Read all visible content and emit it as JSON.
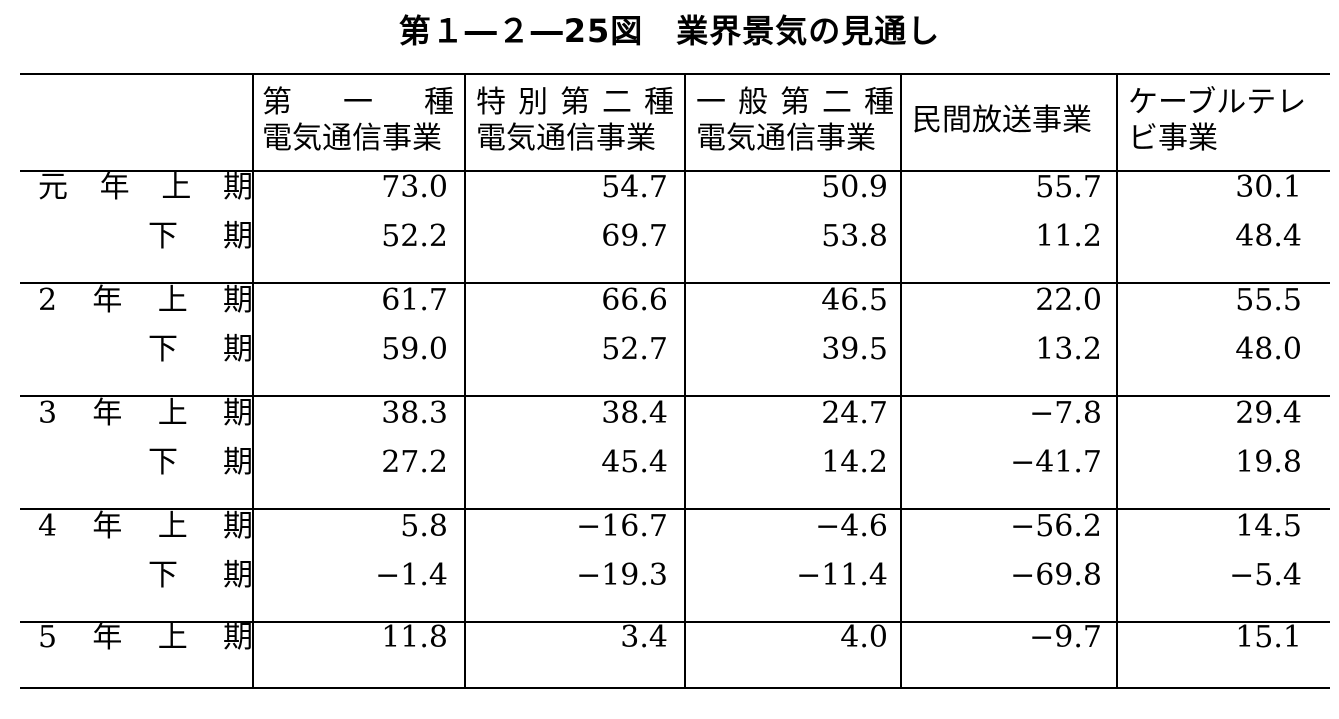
{
  "title": "第１―２―25図　業界景気の見通し",
  "columns": [
    {
      "line1": [
        "第",
        "一",
        "種"
      ],
      "line2": "電気通信事業"
    },
    {
      "line1": [
        "特",
        "別",
        "第",
        "二",
        "種"
      ],
      "line2": "電気通信事業"
    },
    {
      "line1": [
        "一",
        "般",
        "第",
        "二",
        "種"
      ],
      "line2": "電気通信事業"
    },
    {
      "line1": [
        "民間放送事業"
      ],
      "line2": ""
    },
    {
      "line1": [
        "ケーブルテレ"
      ],
      "line2": "ビ事業"
    }
  ],
  "rows": [
    {
      "label": [
        "元",
        "年",
        "上",
        "期"
      ],
      "values": [
        "73.0",
        "54.7",
        "50.9",
        "55.7",
        "30.1"
      ]
    },
    {
      "label": [
        "下",
        "期"
      ],
      "values": [
        "52.2",
        "69.7",
        "53.8",
        "11.2",
        "48.4"
      ]
    },
    {
      "label": [
        "2",
        "年",
        "上",
        "期"
      ],
      "values": [
        "61.7",
        "66.6",
        "46.5",
        "22.0",
        "55.5"
      ]
    },
    {
      "label": [
        "下",
        "期"
      ],
      "values": [
        "59.0",
        "52.7",
        "39.5",
        "13.2",
        "48.0"
      ]
    },
    {
      "label": [
        "3",
        "年",
        "上",
        "期"
      ],
      "values": [
        "38.3",
        "38.4",
        "24.7",
        "−7.8",
        "29.4"
      ]
    },
    {
      "label": [
        "下",
        "期"
      ],
      "values": [
        "27.2",
        "45.4",
        "14.2",
        "−41.7",
        "19.8"
      ]
    },
    {
      "label": [
        "4",
        "年",
        "上",
        "期"
      ],
      "values": [
        "5.8",
        "−16.7",
        "−4.6",
        "−56.2",
        "14.5"
      ]
    },
    {
      "label": [
        "下",
        "期"
      ],
      "values": [
        "−1.4",
        "−19.3",
        "−11.4",
        "−69.8",
        "−5.4"
      ]
    },
    {
      "label": [
        "5",
        "年",
        "上",
        "期"
      ],
      "values": [
        "11.8",
        "3.4",
        "4.0",
        "−9.7",
        "15.1"
      ]
    }
  ]
}
